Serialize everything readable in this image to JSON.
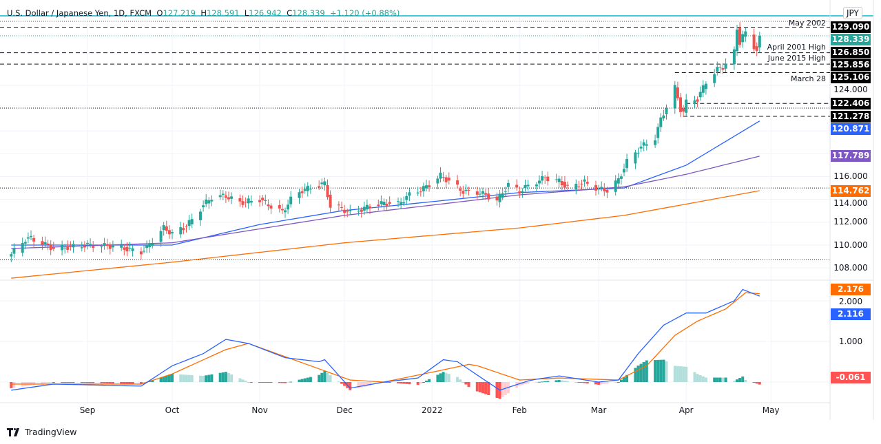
{
  "header": {
    "symbol": "U.S. Dollar / Japanese Yen, 1D, FXCM",
    "open_label": "O",
    "open": "127.219",
    "high_label": "H",
    "high": "128.591",
    "low_label": "L",
    "low": "126.942",
    "close_label": "C",
    "close": "128.339",
    "change": "+1.120 (+0.88%)"
  },
  "currency_badge": "JPY",
  "brand": "TradingView",
  "colors": {
    "up": "#26a69a",
    "down": "#ef5350",
    "ma_fast": "#2962ff",
    "ma_mid": "#7e57c2",
    "ma_slow": "#ff6d00",
    "macd": "#2962ff",
    "signal": "#ff6d00",
    "hist_up_strong": "#26a69a",
    "hist_up_weak": "#b2dfdb",
    "hist_down_strong": "#ff5252",
    "hist_down_weak": "#ffcdd2"
  },
  "levels": [
    {
      "price": 129.09,
      "label": "May 2002",
      "style": "dashed",
      "start": "2021-08-01"
    },
    {
      "price": 126.85,
      "label": "April 2001 High",
      "style": "dashed",
      "start": "2021-08-01"
    },
    {
      "price": 125.856,
      "label": "June 2015 High",
      "style": "dashed",
      "start": "2021-08-01"
    },
    {
      "price": 125.106,
      "label": "March 28",
      "style": "dashed",
      "start": "2022-03-28"
    },
    {
      "price": 122.406,
      "label": "",
      "style": "dashed",
      "start": "2022-04-01"
    },
    {
      "price": 121.278,
      "label": "",
      "style": "dashed",
      "start": "2022-03-31"
    },
    {
      "price": 122.0,
      "label": "",
      "style": "dotted",
      "start": "2021-08-01"
    },
    {
      "price": 115.0,
      "label": "",
      "style": "dotted",
      "start": "2021-08-01"
    },
    {
      "price": 108.7,
      "label": "",
      "style": "dotted",
      "start": "2021-08-01"
    }
  ],
  "price_axis": {
    "ticks": [
      "124.000",
      "116.000",
      "114.000",
      "112.000",
      "110.000",
      "108.000"
    ],
    "badges": [
      {
        "value": "129.090",
        "color": "#000000"
      },
      {
        "value": "128.339",
        "color": "#26a69a"
      },
      {
        "value": "126.850",
        "color": "#000000"
      },
      {
        "value": "125.856",
        "color": "#000000"
      },
      {
        "value": "125.106",
        "color": "#000000"
      },
      {
        "value": "122.406",
        "color": "#000000"
      },
      {
        "value": "121.278",
        "color": "#000000"
      },
      {
        "value": "120.871",
        "color": "#2962ff"
      },
      {
        "value": "117.789",
        "color": "#7e57c2"
      },
      {
        "value": "114.762",
        "color": "#ff6d00"
      }
    ]
  },
  "macd_axis": {
    "ticks": [
      "2.000",
      "1.000"
    ],
    "badges": [
      {
        "value": "2.176",
        "color": "#ff6d00"
      },
      {
        "value": "2.116",
        "color": "#2962ff"
      },
      {
        "value": "-0.061",
        "color": "#ff5252"
      }
    ]
  },
  "time_axis": [
    {
      "label": "Sep",
      "date": "2021-09-01"
    },
    {
      "label": "Oct",
      "date": "2021-10-01"
    },
    {
      "label": "Nov",
      "date": "2021-11-01"
    },
    {
      "label": "Dec",
      "date": "2021-12-01"
    },
    {
      "label": "2022",
      "date": "2022-01-01"
    },
    {
      "label": "Feb",
      "date": "2022-02-01"
    },
    {
      "label": "Mar",
      "date": "2022-03-01"
    },
    {
      "label": "Apr",
      "date": "2022-04-01"
    },
    {
      "label": "May",
      "date": "2022-05-01"
    }
  ],
  "chart_data": {
    "type": "candlestick",
    "price_path": [
      [
        "2021-08-05",
        109.2
      ],
      [
        "2021-08-10",
        110.5
      ],
      [
        "2021-08-12",
        110.6
      ],
      [
        "2021-08-20",
        109.7
      ],
      [
        "2021-09-01",
        110.0
      ],
      [
        "2021-09-10",
        109.9
      ],
      [
        "2021-09-20",
        109.4
      ],
      [
        "2021-09-22",
        109.8
      ],
      [
        "2021-09-28",
        111.5
      ],
      [
        "2021-10-01",
        111.0
      ],
      [
        "2021-10-05",
        111.5
      ],
      [
        "2021-10-08",
        112.2
      ],
      [
        "2021-10-12",
        113.5
      ],
      [
        "2021-10-15",
        114.2
      ],
      [
        "2021-10-20",
        114.3
      ],
      [
        "2021-10-25",
        113.7
      ],
      [
        "2021-11-01",
        114.0
      ],
      [
        "2021-11-05",
        113.4
      ],
      [
        "2021-11-09",
        112.9
      ],
      [
        "2021-11-12",
        114.0
      ],
      [
        "2021-11-16",
        114.8
      ],
      [
        "2021-11-24",
        115.4
      ],
      [
        "2021-11-26",
        113.4
      ],
      [
        "2021-11-30",
        113.2
      ],
      [
        "2021-12-03",
        112.8
      ],
      [
        "2021-12-10",
        113.4
      ],
      [
        "2021-12-15",
        113.7
      ],
      [
        "2021-12-20",
        113.6
      ],
      [
        "2021-12-24",
        114.4
      ],
      [
        "2021-12-30",
        115.1
      ],
      [
        "2022-01-04",
        116.1
      ],
      [
        "2022-01-07",
        115.6
      ],
      [
        "2022-01-12",
        114.7
      ],
      [
        "2022-01-18",
        114.6
      ],
      [
        "2022-01-24",
        113.9
      ],
      [
        "2022-01-28",
        115.3
      ],
      [
        "2022-02-01",
        114.7
      ],
      [
        "2022-02-04",
        115.2
      ],
      [
        "2022-02-10",
        115.9
      ],
      [
        "2022-02-15",
        115.6
      ],
      [
        "2022-02-18",
        115.0
      ],
      [
        "2022-02-24",
        115.5
      ],
      [
        "2022-03-01",
        114.9
      ],
      [
        "2022-03-04",
        114.8
      ],
      [
        "2022-03-08",
        115.7
      ],
      [
        "2022-03-11",
        117.3
      ],
      [
        "2022-03-16",
        118.6
      ],
      [
        "2022-03-21",
        119.4
      ],
      [
        "2022-03-23",
        121.0
      ],
      [
        "2022-03-25",
        122.1
      ],
      [
        "2022-03-28",
        123.8
      ],
      [
        "2022-03-29",
        122.8
      ],
      [
        "2022-03-30",
        121.9
      ],
      [
        "2022-03-31",
        121.7
      ],
      [
        "2022-04-01",
        122.5
      ],
      [
        "2022-04-05",
        122.8
      ],
      [
        "2022-04-08",
        124.3
      ],
      [
        "2022-04-12",
        125.4
      ],
      [
        "2022-04-14",
        125.6
      ],
      [
        "2022-04-18",
        126.9
      ],
      [
        "2022-04-19",
        128.9
      ],
      [
        "2022-04-20",
        127.8
      ],
      [
        "2022-04-21",
        128.4
      ],
      [
        "2022-04-22",
        128.5
      ],
      [
        "2022-04-25",
        127.3
      ],
      [
        "2022-04-26",
        127.2
      ],
      [
        "2022-04-27",
        128.339
      ]
    ],
    "moving_averages": [
      {
        "color": "#2962ff",
        "points": [
          [
            "2021-08-05",
            110.0
          ],
          [
            "2021-10-01",
            110.0
          ],
          [
            "2021-11-01",
            111.8
          ],
          [
            "2021-11-30",
            113.0
          ],
          [
            "2022-01-01",
            113.8
          ],
          [
            "2022-02-01",
            114.6
          ],
          [
            "2022-03-10",
            115.0
          ],
          [
            "2022-04-01",
            117.0
          ],
          [
            "2022-04-27",
            120.871
          ]
        ]
      },
      {
        "color": "#7e57c2",
        "points": [
          [
            "2021-08-05",
            109.7
          ],
          [
            "2021-10-01",
            110.2
          ],
          [
            "2021-12-01",
            112.6
          ],
          [
            "2022-02-01",
            114.4
          ],
          [
            "2022-03-10",
            115.1
          ],
          [
            "2022-04-01",
            116.2
          ],
          [
            "2022-04-27",
            117.789
          ]
        ]
      },
      {
        "color": "#ff6d00",
        "points": [
          [
            "2021-08-05",
            107.1
          ],
          [
            "2021-10-01",
            108.5
          ],
          [
            "2021-12-01",
            110.2
          ],
          [
            "2022-02-01",
            111.5
          ],
          [
            "2022-03-10",
            112.6
          ],
          [
            "2022-04-27",
            114.762
          ]
        ]
      }
    ],
    "macd": {
      "macd_line": [
        [
          "2021-08-05",
          -0.2
        ],
        [
          "2021-08-20",
          -0.05
        ],
        [
          "2021-09-20",
          -0.1
        ],
        [
          "2021-10-01",
          0.4
        ],
        [
          "2021-10-12",
          0.7
        ],
        [
          "2021-10-20",
          1.05
        ],
        [
          "2021-10-28",
          0.95
        ],
        [
          "2021-11-10",
          0.6
        ],
        [
          "2021-11-22",
          0.5
        ],
        [
          "2021-11-24",
          0.55
        ],
        [
          "2021-12-03",
          -0.15
        ],
        [
          "2021-12-15",
          0.0
        ],
        [
          "2021-12-27",
          0.1
        ],
        [
          "2022-01-05",
          0.55
        ],
        [
          "2022-01-10",
          0.5
        ],
        [
          "2022-01-25",
          -0.2
        ],
        [
          "2022-02-05",
          0.05
        ],
        [
          "2022-02-15",
          0.15
        ],
        [
          "2022-03-01",
          0.0
        ],
        [
          "2022-03-08",
          0.05
        ],
        [
          "2022-03-15",
          0.7
        ],
        [
          "2022-03-24",
          1.4
        ],
        [
          "2022-04-01",
          1.7
        ],
        [
          "2022-04-08",
          1.7
        ],
        [
          "2022-04-18",
          2.0
        ],
        [
          "2022-04-21",
          2.28
        ],
        [
          "2022-04-27",
          2.116
        ]
      ],
      "signal_line": [
        [
          "2021-08-05",
          -0.05
        ],
        [
          "2021-09-20",
          -0.05
        ],
        [
          "2021-10-01",
          0.2
        ],
        [
          "2021-10-20",
          0.8
        ],
        [
          "2021-10-28",
          0.95
        ],
        [
          "2021-11-15",
          0.5
        ],
        [
          "2021-12-03",
          0.05
        ],
        [
          "2021-12-15",
          0.0
        ],
        [
          "2022-01-05",
          0.3
        ],
        [
          "2022-01-15",
          0.45
        ],
        [
          "2022-02-01",
          0.05
        ],
        [
          "2022-02-15",
          0.1
        ],
        [
          "2022-03-08",
          0.05
        ],
        [
          "2022-03-18",
          0.4
        ],
        [
          "2022-03-28",
          1.15
        ],
        [
          "2022-04-05",
          1.5
        ],
        [
          "2022-04-15",
          1.8
        ],
        [
          "2022-04-22",
          2.2
        ],
        [
          "2022-04-27",
          2.176
        ]
      ],
      "last_histogram": -0.061
    }
  }
}
